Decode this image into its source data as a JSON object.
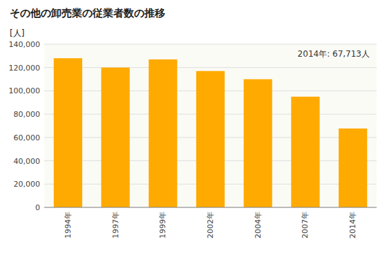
{
  "chart_data": {
    "type": "bar",
    "title": "その他の卸売業の従業者数の推移",
    "ylabel": "[人]",
    "annotation": "2014年: 67,713人",
    "categories": [
      "1994年",
      "1997年",
      "1999年",
      "2002年",
      "2004年",
      "2007年",
      "2014年"
    ],
    "values": [
      128000,
      120000,
      127000,
      117000,
      110000,
      95000,
      67713
    ],
    "color": "#FFAA00",
    "ylim": [
      0,
      140000
    ],
    "yticks": [
      0,
      {
        "value": 20000,
        "label": "20,000"
      },
      {
        "value": 40000,
        "label": "40,000"
      },
      {
        "value": 60000,
        "label": "60,000"
      },
      {
        "value": 80000,
        "label": "80,000"
      },
      {
        "value": 100000,
        "label": "100,000"
      },
      {
        "value": 120000,
        "label": "120,000"
      },
      {
        "value": 140000,
        "label": "140,000"
      }
    ],
    "grid": true
  }
}
